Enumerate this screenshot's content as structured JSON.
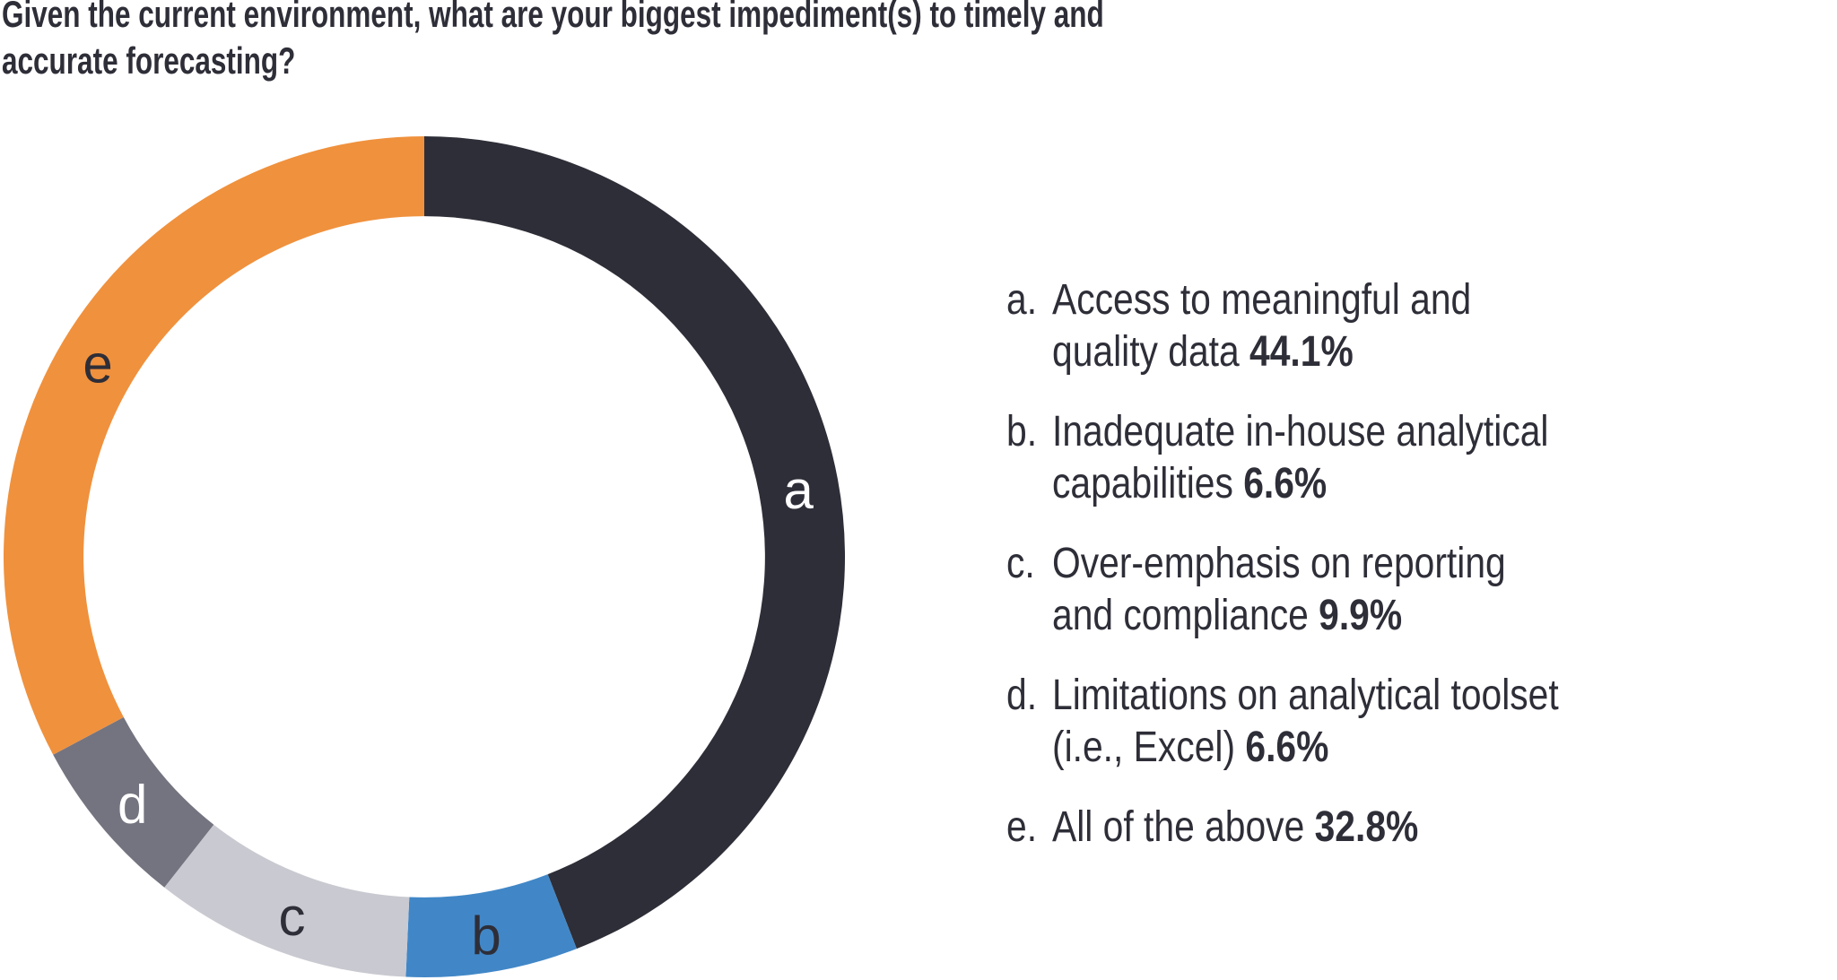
{
  "header": {
    "title_line1": "Given the current environment, what are your biggest impediment(s) to timely and",
    "title_line2": "accurate forecasting?"
  },
  "colors": {
    "text": "#2e2e38",
    "background": "#ffffff"
  },
  "chart_data": {
    "type": "pie",
    "subtype": "donut",
    "title": "Given the current environment, what are your biggest impediment(s) to timely and accurate forecasting?",
    "unit": "%",
    "start_angle_deg": 0,
    "direction": "clockwise",
    "inner_radius_ratio": 0.81,
    "legend_position": "right",
    "segments": [
      {
        "key": "a",
        "label": "Access to meaningful and quality data",
        "value": 44.1,
        "color": "#2e2e38",
        "letter_color": "#ffffff"
      },
      {
        "key": "b",
        "label": "Inadequate in-house analytical capabilities",
        "value": 6.6,
        "color": "#4187c7",
        "letter_color": "#2e2e38"
      },
      {
        "key": "c",
        "label": "Over-emphasis on reporting and compliance",
        "value": 9.9,
        "color": "#c9c9d1",
        "letter_color": "#2e2e38"
      },
      {
        "key": "d",
        "label": "Limitations on analytical toolset (i.e., Excel)",
        "value": 6.6,
        "color": "#747480",
        "letter_color": "#ffffff"
      },
      {
        "key": "e",
        "label": "All of the above",
        "value": 32.8,
        "color": "#f0913d",
        "letter_color": "#2e2e38"
      }
    ]
  },
  "legend": {
    "items": [
      {
        "prefix": "a.",
        "lines": [
          "Access to meaningful and",
          "quality data"
        ],
        "pct": "44.1%"
      },
      {
        "prefix": "b.",
        "lines": [
          "Inadequate in-house analytical",
          "capabilities"
        ],
        "pct": "6.6%"
      },
      {
        "prefix": "c.",
        "lines": [
          "Over-emphasis on reporting",
          "and compliance"
        ],
        "pct": "9.9%"
      },
      {
        "prefix": "d.",
        "lines": [
          "Limitations on analytical toolset",
          "(i.e., Excel)"
        ],
        "pct": "6.6%"
      },
      {
        "prefix": "e.",
        "lines": [
          "All of the above"
        ],
        "pct": "32.8%"
      }
    ]
  }
}
